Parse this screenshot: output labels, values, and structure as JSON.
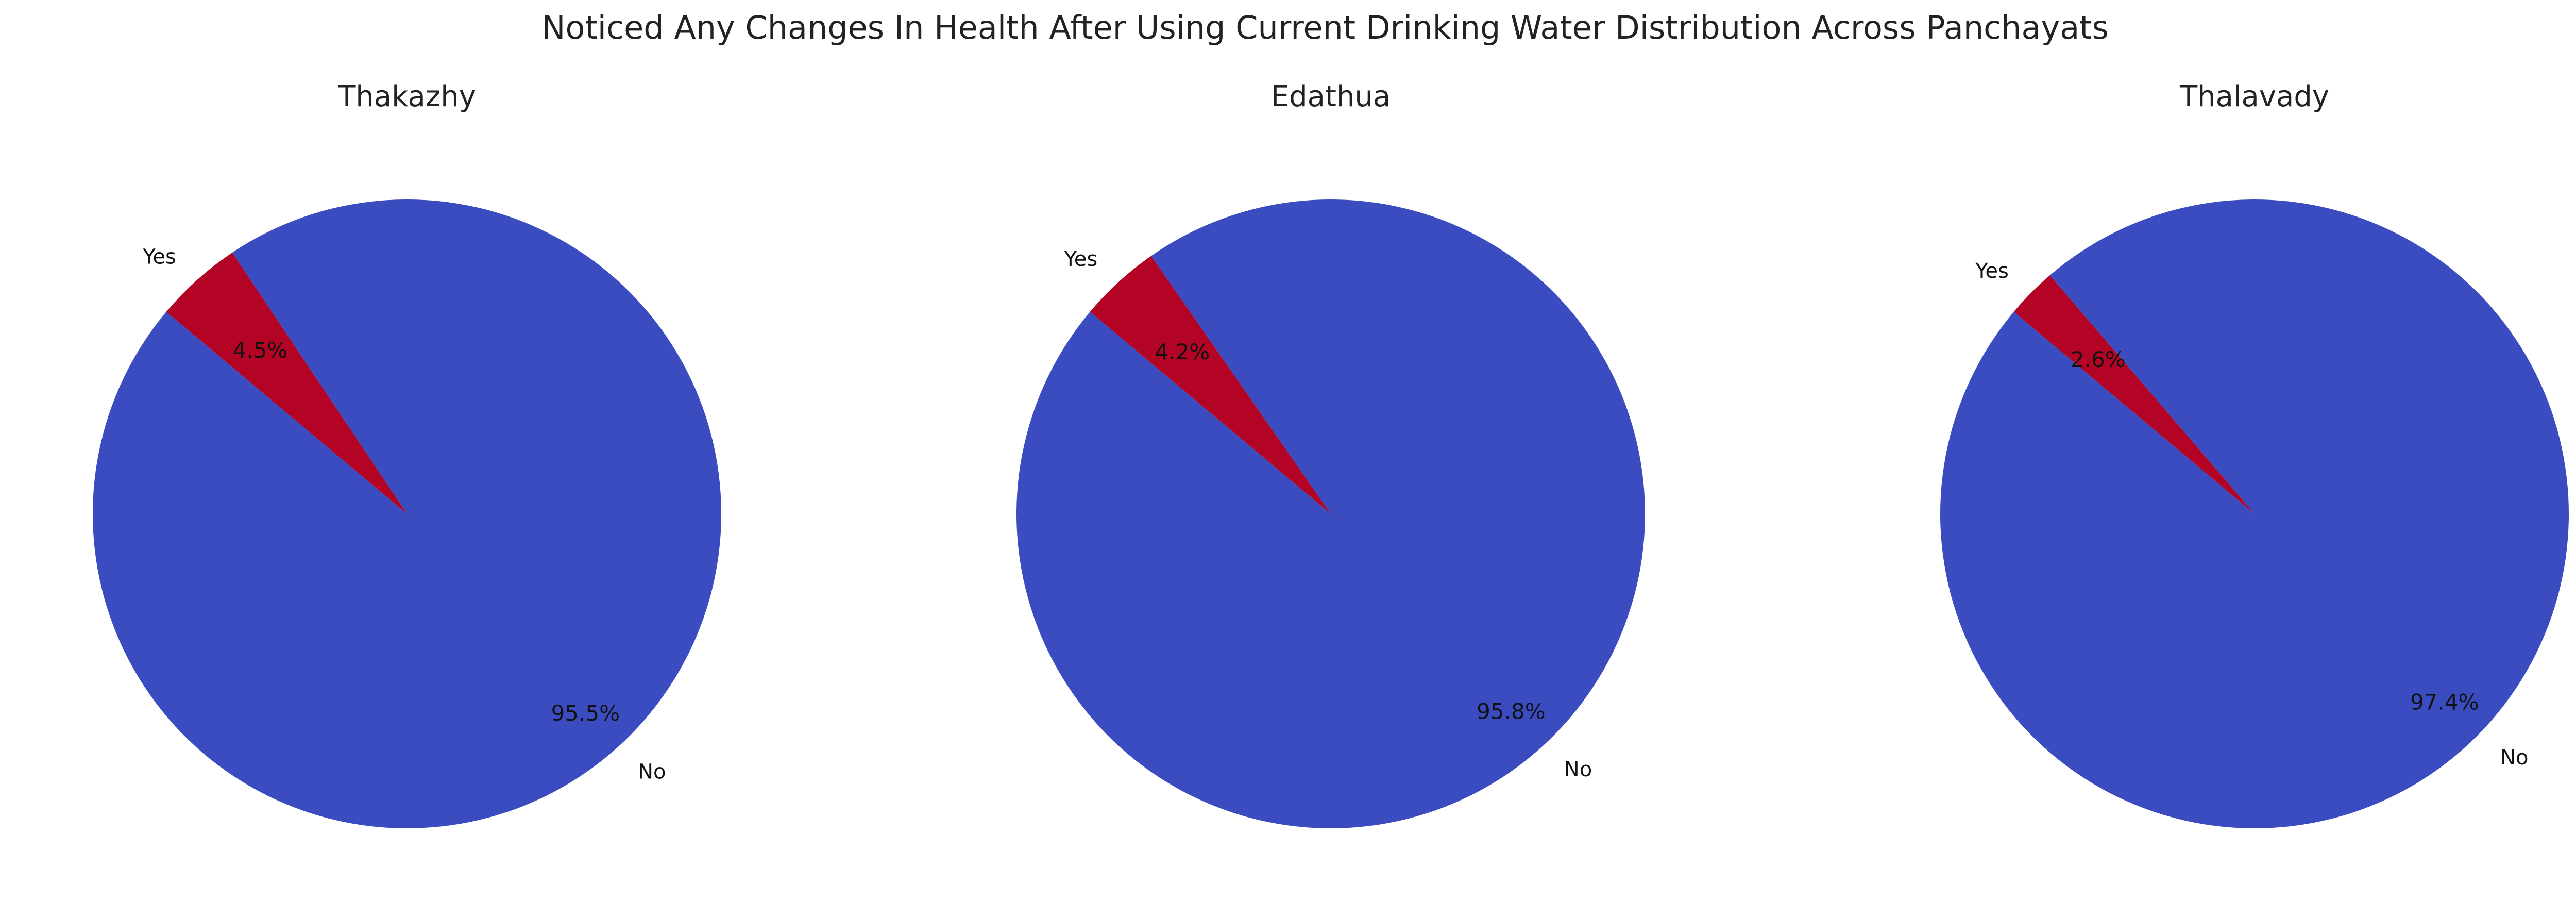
{
  "chart_data": {
    "type": "pie",
    "title": "Noticed Any Changes In Health After Using Current Drinking Water Distribution Across Panchayats",
    "categories": [
      "No",
      "Yes"
    ],
    "colors": {
      "No": "#3b4cc0",
      "Yes": "#b40426"
    },
    "charts": [
      {
        "title": "Thakazhy",
        "slices": [
          {
            "label": "No",
            "value": 95.5,
            "pct_label": "95.5%"
          },
          {
            "label": "Yes",
            "value": 4.5,
            "pct_label": "4.5%"
          }
        ]
      },
      {
        "title": "Edathua",
        "slices": [
          {
            "label": "No",
            "value": 95.8,
            "pct_label": "95.8%"
          },
          {
            "label": "Yes",
            "value": 4.2,
            "pct_label": "4.2%"
          }
        ]
      },
      {
        "title": "Thalavady",
        "slices": [
          {
            "label": "No",
            "value": 97.4,
            "pct_label": "97.4%"
          },
          {
            "label": "Yes",
            "value": 2.6,
            "pct_label": "2.6%"
          }
        ]
      }
    ]
  }
}
